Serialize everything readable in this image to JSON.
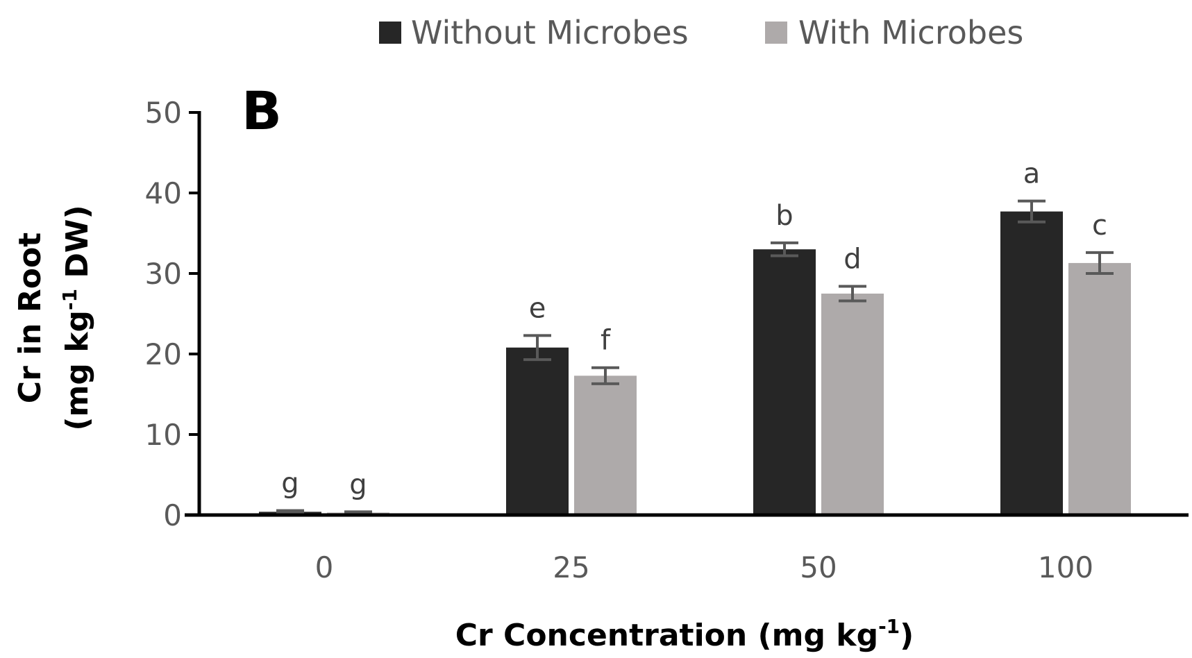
{
  "chart_data": {
    "type": "bar",
    "panel_label": "B",
    "categories": [
      "0",
      "25",
      "50",
      "100"
    ],
    "series": [
      {
        "name": "Without Microbes",
        "color": "#262626",
        "values": [
          0.4,
          20.8,
          33.0,
          37.7
        ],
        "errors": [
          0.15,
          1.5,
          0.8,
          1.3
        ],
        "labels": [
          "g",
          "e",
          "b",
          "a"
        ]
      },
      {
        "name": "With Microbes",
        "color": "#aeaaaa",
        "values": [
          0.3,
          17.3,
          27.5,
          31.3
        ],
        "errors": [
          0.1,
          1.0,
          0.9,
          1.3
        ],
        "labels": [
          "g",
          "f",
          "d",
          "c"
        ]
      }
    ],
    "ylim": [
      0,
      50
    ],
    "yticks": [
      "0",
      "10",
      "20",
      "30",
      "40",
      "50"
    ],
    "ylabel": {
      "line1": "Cr in Root",
      "line2_prefix": "(mg kg",
      "line2_sup": "-1",
      "line2_suffix": " DW)"
    },
    "xlabel": {
      "prefix": "Cr Concentration (mg kg",
      "sup": "-1",
      "suffix": ")"
    },
    "error_bar_color": "#595959",
    "axis_color": "#000000",
    "legend_position": "top-center"
  }
}
